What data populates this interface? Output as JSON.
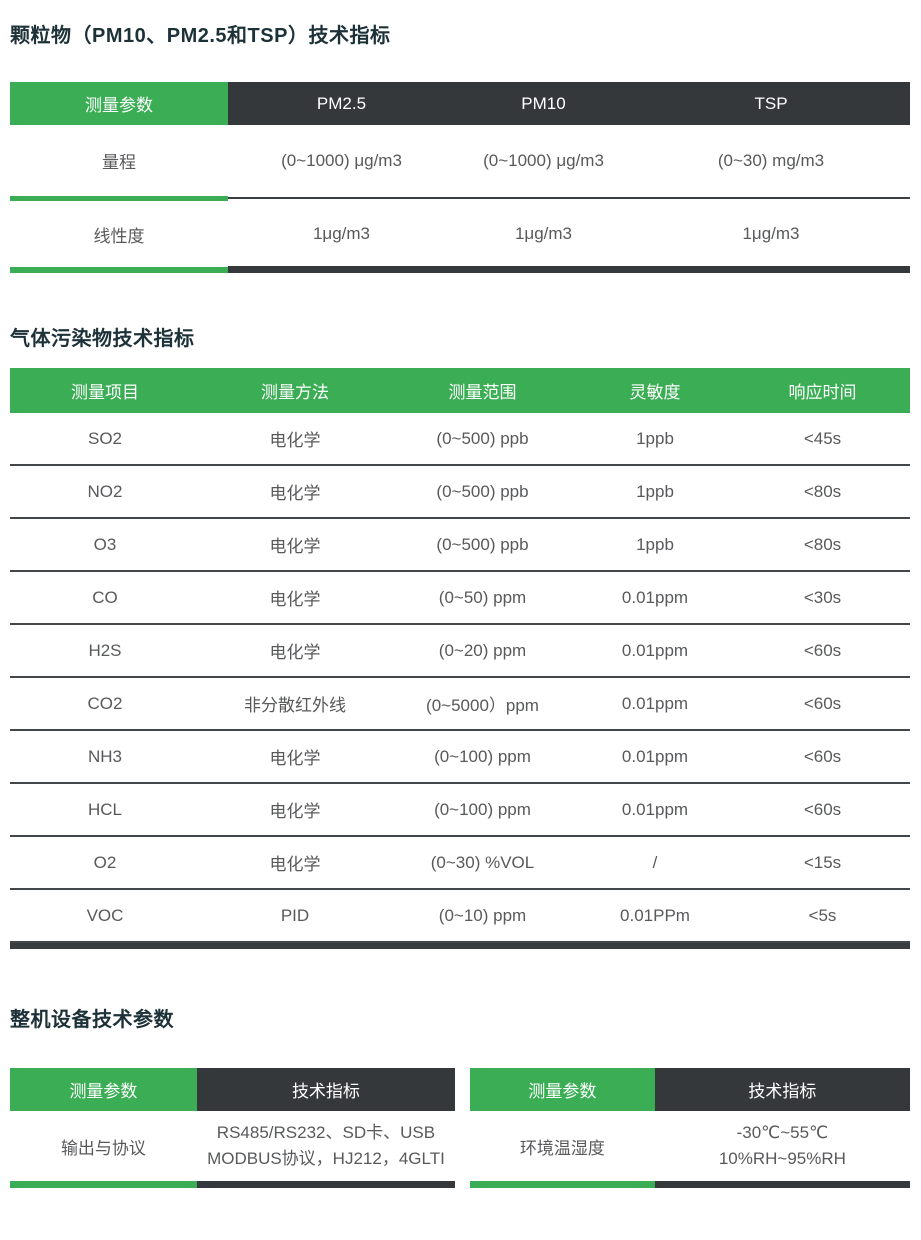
{
  "colors": {
    "green": "#3bae55",
    "dark_header": "#34383a",
    "body_text": "#58595b",
    "title_text": "#1d3138",
    "thin_separator": "#43474a",
    "thick_border": "#35393b"
  },
  "section_particulate": {
    "title": "颗粒物（PM10、PM2.5和TSP）技术指标",
    "table": {
      "header": [
        "测量参数",
        "PM2.5",
        "PM10",
        "TSP"
      ],
      "rows": [
        {
          "label": "量程",
          "values": [
            "(0~1000) μg/m3",
            "(0~1000) μg/m3",
            "(0~30) mg/m3"
          ]
        },
        {
          "label": "线性度",
          "values": [
            "1μg/m3",
            "1μg/m3",
            "1μg/m3"
          ]
        }
      ]
    }
  },
  "section_gas": {
    "title": "气体污染物技术指标",
    "table": {
      "header": [
        "测量项目",
        "测量方法",
        "测量范围",
        "灵敏度",
        "响应时间"
      ],
      "rows": [
        [
          "SO2",
          "电化学",
          "(0~500) ppb",
          "1ppb",
          "<45s"
        ],
        [
          "NO2",
          "电化学",
          "(0~500) ppb",
          "1ppb",
          "<80s"
        ],
        [
          "O3",
          "电化学",
          "(0~500) ppb",
          "1ppb",
          "<80s"
        ],
        [
          "CO",
          "电化学",
          "(0~50) ppm",
          "0.01ppm",
          "<30s"
        ],
        [
          "H2S",
          "电化学",
          "(0~20) ppm",
          "0.01ppm",
          "<60s"
        ],
        [
          "CO2",
          "非分散红外线",
          "(0~5000）ppm",
          "0.01ppm",
          "<60s"
        ],
        [
          "NH3",
          "电化学",
          "(0~100) ppm",
          "0.01ppm",
          "<60s"
        ],
        [
          "HCL",
          "电化学",
          "(0~100) ppm",
          "0.01ppm",
          "<60s"
        ],
        [
          "O2",
          "电化学",
          "(0~30) %VOL",
          "/",
          "<15s"
        ],
        [
          "VOC",
          "PID",
          "(0~10) ppm",
          "0.01PPm",
          "<5s"
        ]
      ]
    }
  },
  "section_device": {
    "title": "整机设备技术参数",
    "left_table": {
      "header": [
        "测量参数",
        "技术指标"
      ],
      "row": {
        "label": "输出与协议",
        "value_line1": "RS485/RS232、SD卡、USB",
        "value_line2": "MODBUS协议，HJ212，4GLTI"
      }
    },
    "right_table": {
      "header": [
        "测量参数",
        "技术指标"
      ],
      "row": {
        "label": "环境温湿度",
        "value_line1": "-30℃~55℃",
        "value_line2": "10%RH~95%RH"
      }
    }
  }
}
